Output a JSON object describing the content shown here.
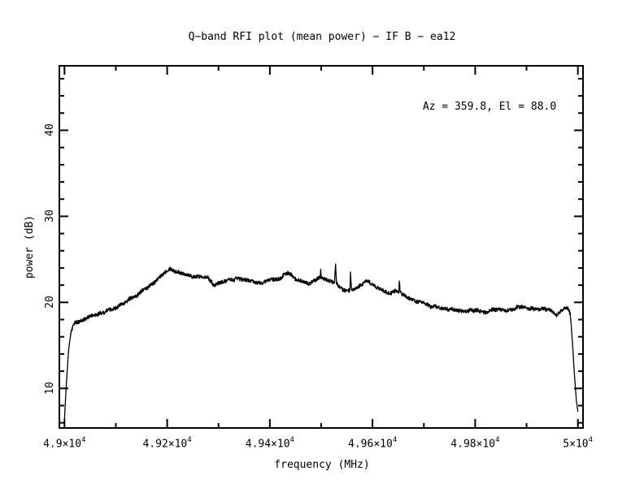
{
  "page": {
    "background": "#ffffff",
    "foreground": "#000000"
  },
  "chart_data": {
    "type": "line",
    "title": "Q−band RFI plot (mean power) − IF B − ea12",
    "xlabel": "frequency (MHz)",
    "ylabel": "power (dB)",
    "annotation": "Az = 359.8, El = 88.0",
    "grid": false,
    "legend": null,
    "xlim": [
      48990,
      50010
    ],
    "ylim": [
      5.4,
      47.5
    ],
    "x_minor_step": 100,
    "y_minor_step": 2,
    "x_major_ticks": [
      {
        "value": 49000,
        "label_m": "4.9×10",
        "label_e": "4"
      },
      {
        "value": 49200,
        "label_m": "4.92×10",
        "label_e": "4"
      },
      {
        "value": 49400,
        "label_m": "4.94×10",
        "label_e": "4"
      },
      {
        "value": 49600,
        "label_m": "4.96×10",
        "label_e": "4"
      },
      {
        "value": 49800,
        "label_m": "4.98×10",
        "label_e": "4"
      },
      {
        "value": 50000,
        "label_m": "5×10",
        "label_e": "4"
      }
    ],
    "y_major_ticks": [
      {
        "value": 10,
        "label": "10"
      },
      {
        "value": 20,
        "label": "20"
      },
      {
        "value": 30,
        "label": "30"
      },
      {
        "value": 40,
        "label": "40"
      }
    ],
    "series": [
      {
        "name": "mean power",
        "color": "#000000",
        "noise_amplitude_db": 0.22,
        "points": [
          [
            49000,
            6.3
          ],
          [
            49002,
            8.8
          ],
          [
            49005,
            11.8
          ],
          [
            49008,
            14.4
          ],
          [
            49012,
            16.3
          ],
          [
            49018,
            17.4
          ],
          [
            49026,
            17.8
          ],
          [
            49040,
            18.1
          ],
          [
            49060,
            18.6
          ],
          [
            49080,
            18.9
          ],
          [
            49100,
            19.4
          ],
          [
            49120,
            20.1
          ],
          [
            49140,
            20.7
          ],
          [
            49160,
            21.7
          ],
          [
            49180,
            22.6
          ],
          [
            49195,
            23.4
          ],
          [
            49207,
            23.9
          ],
          [
            49218,
            23.6
          ],
          [
            49235,
            23.3
          ],
          [
            49250,
            22.9
          ],
          [
            49263,
            23.1
          ],
          [
            49278,
            22.9
          ],
          [
            49291,
            21.9
          ],
          [
            49302,
            22.4
          ],
          [
            49320,
            22.6
          ],
          [
            49340,
            22.8
          ],
          [
            49362,
            22.5
          ],
          [
            49380,
            22.2
          ],
          [
            49400,
            22.6
          ],
          [
            49420,
            22.8
          ],
          [
            49435,
            23.5
          ],
          [
            49448,
            22.7
          ],
          [
            49465,
            22.4
          ],
          [
            49477,
            22.1
          ],
          [
            49491,
            22.7
          ],
          [
            49498,
            22.9
          ],
          [
            49499,
            23.9
          ],
          [
            49500,
            22.9
          ],
          [
            49512,
            22.4
          ],
          [
            49526,
            22.3
          ],
          [
            49528,
            24.3
          ],
          [
            49530,
            22.3
          ],
          [
            49541,
            21.5
          ],
          [
            49550,
            21.4
          ],
          [
            49556,
            21.4
          ],
          [
            49557,
            23.6
          ],
          [
            49559,
            21.4
          ],
          [
            49571,
            21.6
          ],
          [
            49585,
            22.4
          ],
          [
            49593,
            22.4
          ],
          [
            49606,
            21.9
          ],
          [
            49620,
            21.3
          ],
          [
            49633,
            21.0
          ],
          [
            49645,
            21.3
          ],
          [
            49651,
            21.2
          ],
          [
            49652,
            22.6
          ],
          [
            49654,
            21.2
          ],
          [
            49666,
            20.6
          ],
          [
            49680,
            20.2
          ],
          [
            49696,
            19.9
          ],
          [
            49711,
            19.6
          ],
          [
            49726,
            19.4
          ],
          [
            49745,
            19.2
          ],
          [
            49765,
            19.1
          ],
          [
            49785,
            19.0
          ],
          [
            49800,
            19.1
          ],
          [
            49815,
            18.9
          ],
          [
            49830,
            19.0
          ],
          [
            49846,
            19.2
          ],
          [
            49860,
            19.0
          ],
          [
            49876,
            19.3
          ],
          [
            49891,
            19.5
          ],
          [
            49906,
            19.2
          ],
          [
            49921,
            19.2
          ],
          [
            49936,
            19.3
          ],
          [
            49950,
            18.9
          ],
          [
            49958,
            18.6
          ],
          [
            49966,
            18.9
          ],
          [
            49975,
            19.4
          ],
          [
            49981,
            19.3
          ],
          [
            49985,
            18.7
          ],
          [
            49989,
            15.8
          ],
          [
            49993,
            11.8
          ],
          [
            49997,
            8.6
          ],
          [
            50000,
            7.3
          ]
        ]
      }
    ]
  }
}
